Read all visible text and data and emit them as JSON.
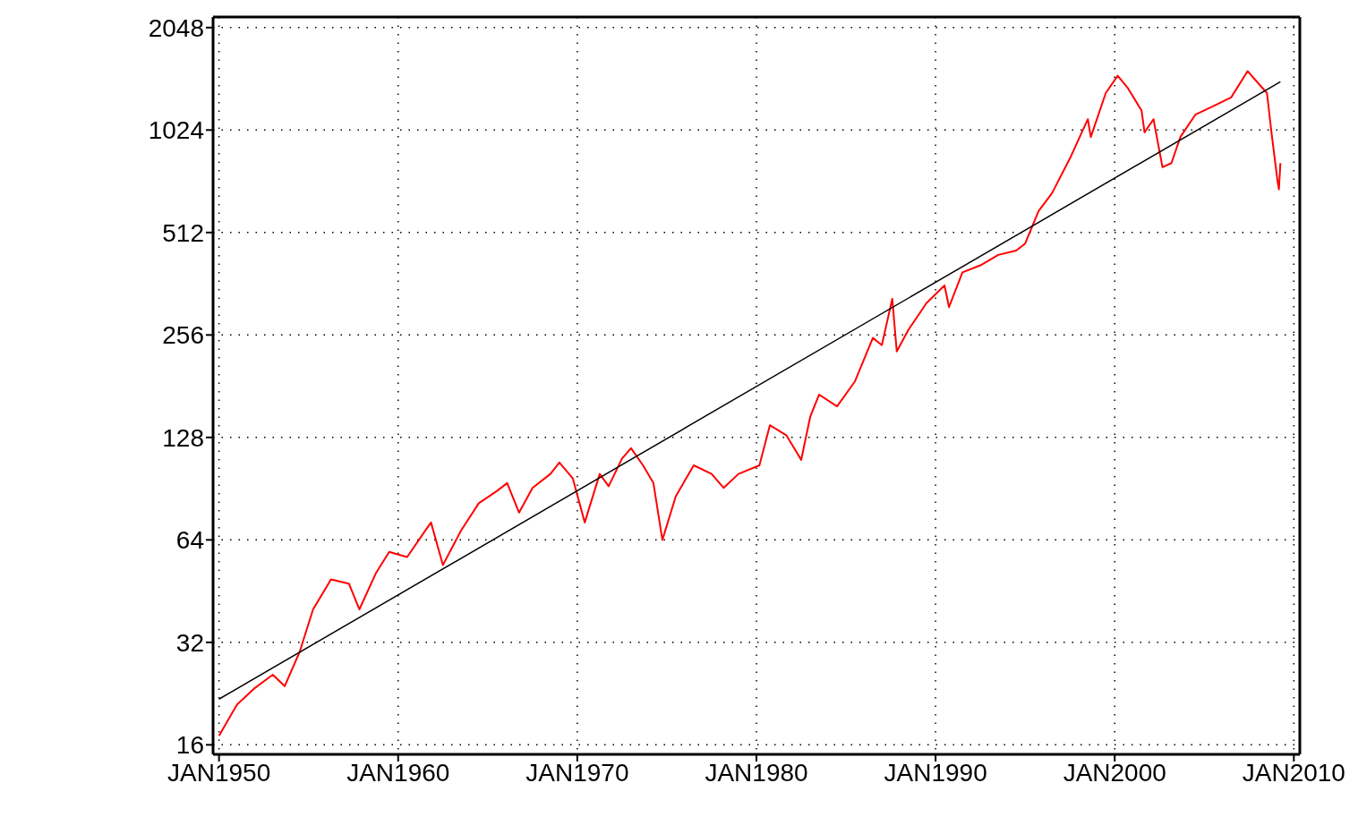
{
  "chart_data": {
    "type": "line",
    "log": "y",
    "grid": true,
    "marker": "none",
    "line_style": "solid",
    "xlim": [
      "1949-09",
      "2010-05"
    ],
    "xticks": [
      {
        "value": "1950-01",
        "label": "JAN1950"
      },
      {
        "value": "1960-01",
        "label": "JAN1960"
      },
      {
        "value": "1970-01",
        "label": "JAN1970"
      },
      {
        "value": "1980-01",
        "label": "JAN1980"
      },
      {
        "value": "1990-01",
        "label": "JAN1990"
      },
      {
        "value": "2000-01",
        "label": "JAN2000"
      },
      {
        "value": "2010-01",
        "label": "JAN2010"
      }
    ],
    "ylim": [
      15,
      2200
    ],
    "yticks": [
      16,
      32,
      64,
      128,
      256,
      512,
      1024,
      2048
    ],
    "series": [
      {
        "color": "#ff0000",
        "x": [
          "1950-01",
          "1951-01",
          "1952-01",
          "1953-01",
          "1953-09",
          "1954-07",
          "1955-04",
          "1956-04",
          "1957-04",
          "1957-11",
          "1958-10",
          "1959-07",
          "1960-07",
          "1961-07",
          "1961-11",
          "1962-07",
          "1963-07",
          "1964-07",
          "1965-07",
          "1966-02",
          "1966-10",
          "1967-07",
          "1968-07",
          "1969-01",
          "1969-10",
          "1970-06",
          "1971-04",
          "1971-10",
          "1972-07",
          "1973-01",
          "1973-09",
          "1974-04",
          "1974-10",
          "1975-07",
          "1976-07",
          "1977-07",
          "1978-03",
          "1979-01",
          "1980-03",
          "1980-10",
          "1981-09",
          "1982-07",
          "1983-01",
          "1983-07",
          "1984-07",
          "1985-07",
          "1986-07",
          "1987-01",
          "1987-08",
          "1987-11",
          "1988-07",
          "1989-07",
          "1990-07",
          "1990-10",
          "1991-07",
          "1992-07",
          "1993-07",
          "1994-07",
          "1995-01",
          "1995-10",
          "1996-07",
          "1997-07",
          "1998-07",
          "1998-09",
          "1999-07",
          "2000-03",
          "2000-10",
          "2001-07",
          "2001-09",
          "2002-03",
          "2002-09",
          "2003-03",
          "2003-09",
          "2004-07",
          "2005-07",
          "2006-07",
          "2007-06",
          "2007-11",
          "2008-07",
          "2008-10",
          "2009-02",
          "2009-03",
          "2009-04"
        ],
        "values": [
          17,
          21,
          23.5,
          25.7,
          23.8,
          30,
          40,
          49,
          47.6,
          40,
          51,
          59,
          57,
          68,
          72,
          54,
          68,
          82,
          89,
          94,
          77,
          91,
          100,
          108,
          97,
          72,
          100,
          92,
          111,
          119,
          106,
          94,
          64,
          86,
          106,
          100,
          91,
          100,
          106,
          139,
          130,
          110,
          147,
          171,
          158,
          187,
          251,
          239,
          327,
          229,
          266,
          318,
          358,
          309,
          391,
          410,
          440,
          453,
          475,
          592,
          668,
          845,
          1102,
          977,
          1315,
          1479,
          1356,
          1168,
          1008,
          1102,
          796,
          819,
          977,
          1136,
          1204,
          1277,
          1526,
          1440,
          1315,
          1008,
          729,
          686,
          819
        ]
      },
      {
        "type": "line",
        "color": "#000000",
        "x": [
          "1950-01",
          "2009-04"
        ],
        "values": [
          21.8,
          1420
        ]
      }
    ]
  }
}
